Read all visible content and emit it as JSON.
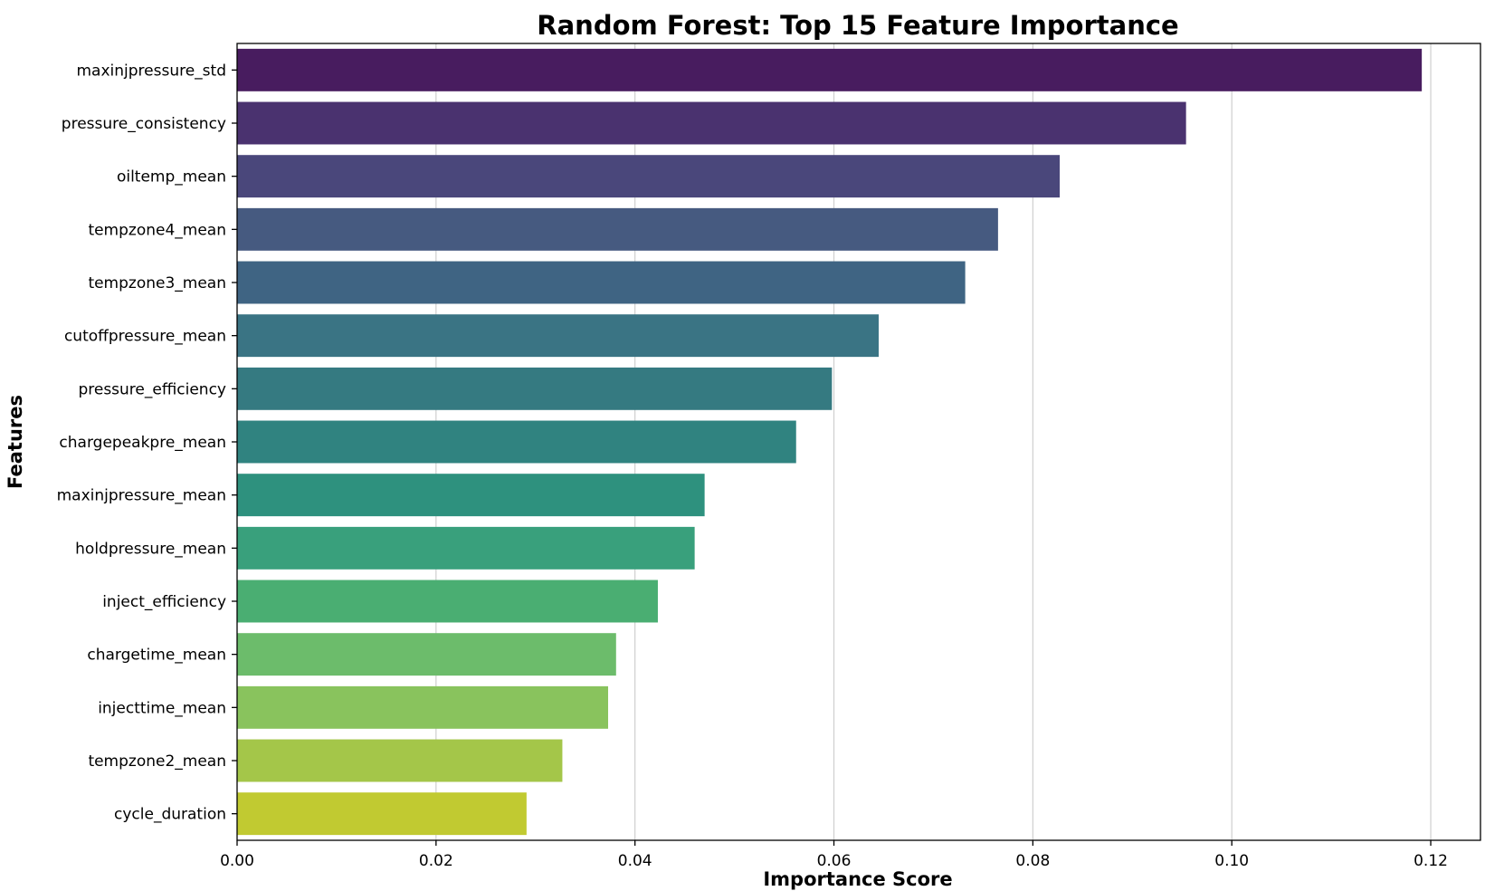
{
  "chart_data": {
    "type": "bar",
    "orientation": "horizontal",
    "title": "Random Forest: Top 15 Feature Importance",
    "xlabel": "Importance Score",
    "ylabel": "Features",
    "xlim": [
      0,
      0.125
    ],
    "xticks": [
      0.0,
      0.02,
      0.04,
      0.06,
      0.08,
      0.1,
      0.12
    ],
    "xtick_labels": [
      "0.00",
      "0.02",
      "0.04",
      "0.06",
      "0.08",
      "0.10",
      "0.12"
    ],
    "grid": "x",
    "colormap": "viridis",
    "categories": [
      "maxinjpressure_std",
      "pressure_consistency",
      "oiltemp_mean",
      "tempzone4_mean",
      "tempzone3_mean",
      "cutoffpressure_mean",
      "pressure_efficiency",
      "chargepeakpre_mean",
      "maxinjpressure_mean",
      "holdpressure_mean",
      "inject_efficiency",
      "chargetime_mean",
      "injecttime_mean",
      "tempzone2_mean",
      "cycle_duration"
    ],
    "values": [
      0.1191,
      0.0954,
      0.0827,
      0.0765,
      0.0732,
      0.0645,
      0.0598,
      0.0562,
      0.047,
      0.046,
      0.0423,
      0.0381,
      0.0373,
      0.0327,
      0.0291
    ],
    "colors": [
      "#481c5f",
      "#4a326f",
      "#4a477b",
      "#465a80",
      "#3f6483",
      "#3a7484",
      "#357a81",
      "#308380",
      "#2e917e",
      "#39a07c",
      "#4aae72",
      "#6cbc6b",
      "#89c35d",
      "#a4c649",
      "#c1ca31"
    ]
  }
}
